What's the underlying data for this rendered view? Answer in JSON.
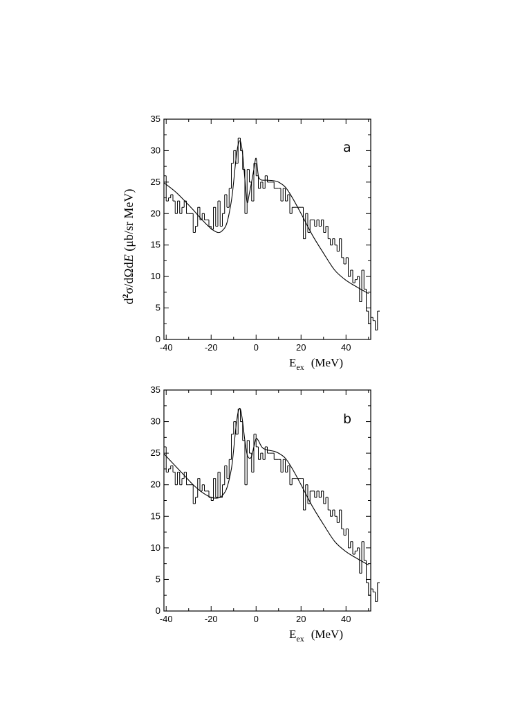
{
  "figure": {
    "ylabel_prefix": "d",
    "ylabel_sup": "2",
    "ylabel_mid": "σ/dΩd",
    "ylabel_italic": "E",
    "ylabel_suffix": " (μb/sr MeV)",
    "xlabel_main": "E",
    "xlabel_sub": "ex",
    "xlabel_units": "(MeV)"
  },
  "chart_data": [
    {
      "type": "line",
      "panel_label": "a",
      "xlabel": "Eex (MeV)",
      "ylabel": "d2σ/dΩdE (μb/sr MeV)",
      "xlim": [
        -41,
        51
      ],
      "ylim": [
        0,
        35
      ],
      "xticks": [
        -40,
        -20,
        0,
        20,
        40
      ],
      "yticks": [
        0,
        5,
        10,
        15,
        20,
        25,
        30,
        35
      ],
      "grid": false,
      "histogram": {
        "bin_width": 1,
        "x_start": -41,
        "values": [
          26,
          22,
          22.5,
          23,
          22,
          20,
          22,
          20,
          21,
          22,
          20,
          20,
          20,
          17,
          18,
          21,
          19,
          20,
          19,
          19,
          18,
          17.5,
          21,
          18,
          22,
          18,
          20,
          23,
          21,
          24,
          28,
          30,
          28,
          32,
          30,
          27,
          20,
          27,
          25,
          22,
          28,
          26,
          24,
          25,
          24,
          26,
          25,
          25,
          25,
          24,
          24,
          24,
          22,
          24,
          22,
          23,
          20,
          21,
          21,
          21,
          21,
          21,
          16,
          20,
          17,
          19,
          19,
          18,
          19,
          18,
          19,
          17,
          18,
          16,
          15,
          16,
          15,
          14,
          16,
          13,
          12,
          13,
          10,
          11,
          9,
          9.5,
          10,
          6,
          11,
          8,
          4.5,
          2.5,
          3.5,
          3,
          1.5,
          4.5
        ]
      },
      "curve": {
        "x": [
          -41,
          -36,
          -32,
          -28,
          -24,
          -20,
          -17,
          -15,
          -13,
          -11,
          -10,
          -9,
          -8,
          -7,
          -6,
          -5,
          -4,
          -3,
          -2,
          -1,
          0,
          1,
          2,
          3,
          5,
          8,
          10,
          13,
          16,
          20,
          25,
          30,
          35,
          40,
          45,
          50
        ],
        "y": [
          24.9,
          23.5,
          22.1,
          20.6,
          19.0,
          17.6,
          17.0,
          17.3,
          18.5,
          22.0,
          25.0,
          28.5,
          30.9,
          31.5,
          29.5,
          25.5,
          21.8,
          23.2,
          25.0,
          27.0,
          28.8,
          26.0,
          25.4,
          25.3,
          25.3,
          25.2,
          25.0,
          24.2,
          22.6,
          20.0,
          16.6,
          13.7,
          11.0,
          9.4,
          8.3,
          7.3
        ]
      }
    },
    {
      "type": "line",
      "panel_label": "b",
      "xlabel": "Eex (MeV)",
      "ylabel": "d2σ/dΩdE (μb/sr MeV)",
      "xlim": [
        -41,
        51
      ],
      "ylim": [
        0,
        35
      ],
      "xticks": [
        -40,
        -20,
        0,
        20,
        40
      ],
      "yticks": [
        0,
        5,
        10,
        15,
        20,
        25,
        30,
        35
      ],
      "grid": false,
      "histogram": {
        "bin_width": 1,
        "x_start": -41,
        "values": [
          26,
          22,
          22.5,
          23,
          22,
          20,
          22,
          20,
          21,
          22,
          20,
          20,
          20,
          17,
          18,
          21,
          19,
          20,
          19,
          19,
          18,
          17.5,
          21,
          18,
          22,
          18,
          20,
          23,
          21,
          24,
          28,
          30,
          28,
          32,
          30,
          27,
          20,
          27,
          25,
          22,
          28,
          26,
          24,
          25,
          24,
          26,
          25,
          25,
          25,
          24,
          24,
          24,
          22,
          24,
          22,
          23,
          20,
          21,
          21,
          21,
          21,
          21,
          16,
          20,
          17,
          19,
          19,
          18,
          19,
          18,
          19,
          17,
          18,
          16,
          15,
          16,
          15,
          14,
          16,
          13,
          12,
          13,
          10,
          11,
          9,
          9.5,
          10,
          6,
          11,
          8,
          4.5,
          2.5,
          3.5,
          3,
          1.5,
          4.5
        ]
      },
      "curve": {
        "x": [
          -41,
          -36,
          -32,
          -28,
          -24,
          -20,
          -17,
          -15,
          -13,
          -11,
          -10,
          -9,
          -8,
          -7,
          -6,
          -5,
          -4,
          -3,
          -2,
          -1,
          0,
          1,
          2,
          3,
          5,
          8,
          10,
          13,
          16,
          20,
          25,
          30,
          35,
          40,
          45,
          50
        ],
        "y": [
          24.9,
          23.0,
          21.5,
          20.0,
          18.8,
          18.0,
          17.9,
          18.3,
          19.5,
          22.5,
          25.5,
          29.0,
          31.5,
          32.0,
          30.0,
          27.0,
          24.8,
          24.2,
          24.5,
          26.0,
          27.3,
          27.0,
          26.3,
          25.8,
          25.5,
          25.3,
          25.0,
          24.2,
          22.6,
          20.0,
          16.6,
          13.7,
          11.0,
          9.4,
          8.3,
          7.3
        ]
      }
    }
  ]
}
